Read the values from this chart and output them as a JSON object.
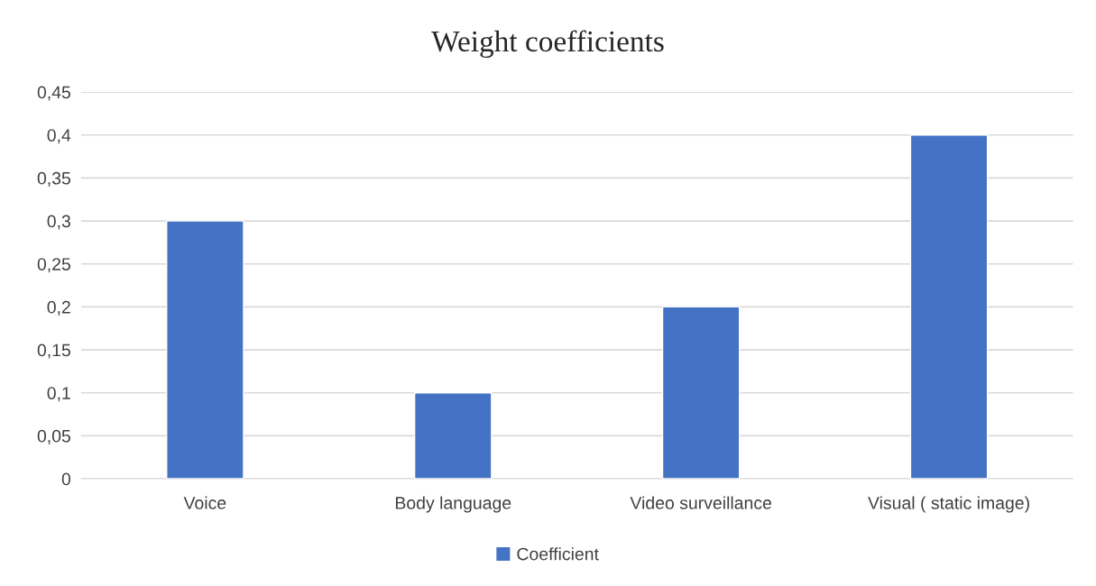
{
  "chart_data": {
    "type": "bar",
    "title": "Weight coefficients",
    "categories": [
      "Voice",
      "Body language",
      "Video surveillance",
      "Visual ( static image)"
    ],
    "series": [
      {
        "name": "Coefficient",
        "color": "#4472c4",
        "values": [
          0.3,
          0.1,
          0.2,
          0.4
        ]
      }
    ],
    "ylim": [
      0,
      0.45
    ],
    "yticks": [
      0,
      {
        "value": 0.05,
        "label": "0,05"
      },
      {
        "value": 0.1,
        "label": "0,1"
      },
      {
        "value": 0.15,
        "label": "0,15"
      },
      {
        "value": 0.2,
        "label": "0,2"
      },
      {
        "value": 0.25,
        "label": "0,25"
      },
      {
        "value": 0.3,
        "label": "0,3"
      },
      {
        "value": 0.35,
        "label": "0,35"
      },
      {
        "value": 0.4,
        "label": "0,4"
      },
      {
        "value": 0.45,
        "label": "0,45"
      }
    ],
    "grid": "y",
    "legend": "bottom"
  }
}
